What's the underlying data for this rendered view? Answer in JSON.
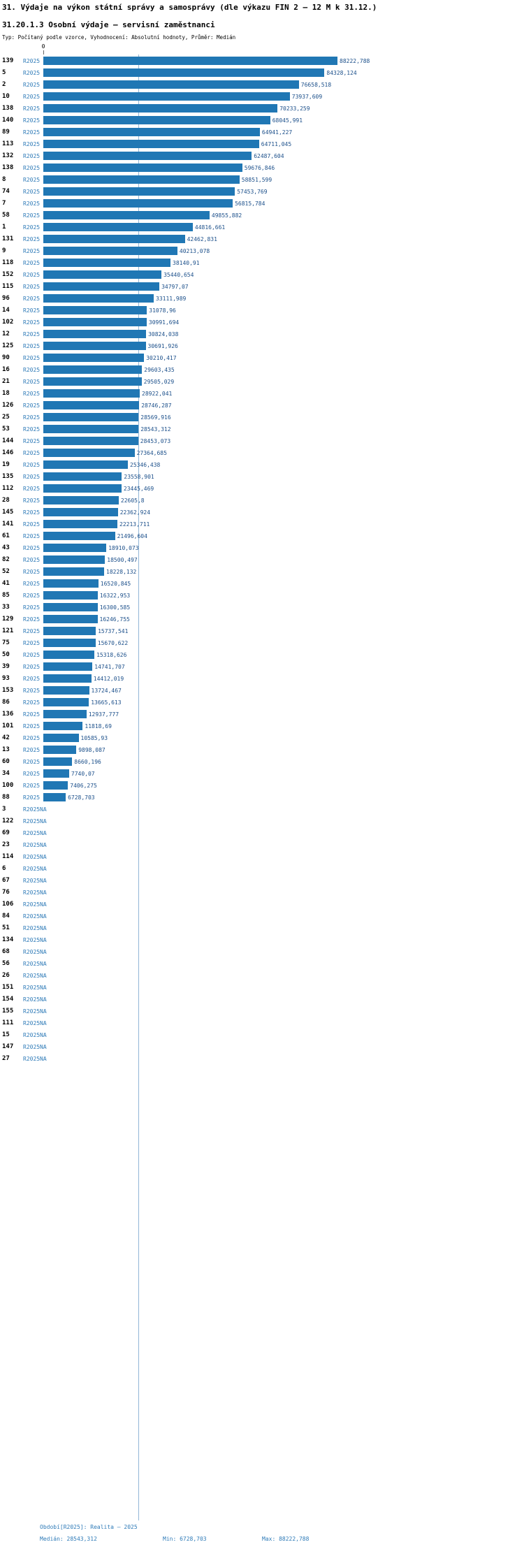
{
  "header": {
    "title": "31. Výdaje na výkon státní správy a samosprávy (dle výkazu FIN 2 – 12 M k 31.12.)",
    "subtitle": "31.20.1.3 Osobní výdaje – servisní zaměstnanci",
    "meta": "Typ: Počítaný podle vzorce, Vyhodnocení: Absolutní hodnoty, Průměr: Medián"
  },
  "colors": {
    "bar": "#2077b4",
    "series_label": "#2f7bb8",
    "value_label": "#1b4f8a",
    "median_line": "#92b7d7",
    "footer": "#2f7bb8",
    "text": "#000000"
  },
  "chart_data": {
    "type": "bar",
    "orientation": "horizontal",
    "title": "31.20.1.3 Osobní výdaje – servisní zaměstnanci",
    "series_name": "R2025",
    "na_label": "NA",
    "value_axis": {
      "zero_label": "0",
      "min": 0,
      "max": 88222.788
    },
    "median": 28543.312,
    "min": 6728.703,
    "max": 88222.788,
    "legend_position": "none",
    "grid": false,
    "rows": [
      {
        "id": "139",
        "value": 88222.788,
        "label": "88222,788"
      },
      {
        "id": "5",
        "value": 84328.124,
        "label": "84328,124"
      },
      {
        "id": "2",
        "value": 76658.518,
        "label": "76658,518"
      },
      {
        "id": "10",
        "value": 73937.609,
        "label": "73937,609"
      },
      {
        "id": "138",
        "value": 70233.259,
        "label": "70233,259"
      },
      {
        "id": "140",
        "value": 68045.991,
        "label": "68045,991"
      },
      {
        "id": "89",
        "value": 64941.227,
        "label": "64941,227"
      },
      {
        "id": "113",
        "value": 64711.045,
        "label": "64711,045"
      },
      {
        "id": "132",
        "value": 62487.604,
        "label": "62487,604"
      },
      {
        "id": "138",
        "value": 59676.846,
        "label": "59676,846"
      },
      {
        "id": "8",
        "value": 58851.599,
        "label": "58851,599"
      },
      {
        "id": "74",
        "value": 57453.769,
        "label": "57453,769"
      },
      {
        "id": "7",
        "value": 56815.784,
        "label": "56815,784"
      },
      {
        "id": "58",
        "value": 49855.882,
        "label": "49855,882"
      },
      {
        "id": "1",
        "value": 44816.661,
        "label": "44816,661"
      },
      {
        "id": "131",
        "value": 42462.831,
        "label": "42462,831"
      },
      {
        "id": "9",
        "value": 40213.078,
        "label": "40213,078"
      },
      {
        "id": "118",
        "value": 38140.91,
        "label": "38140,91"
      },
      {
        "id": "152",
        "value": 35440.654,
        "label": "35440,654"
      },
      {
        "id": "115",
        "value": 34797.07,
        "label": "34797,07"
      },
      {
        "id": "96",
        "value": 33111.989,
        "label": "33111,989"
      },
      {
        "id": "14",
        "value": 31078.96,
        "label": "31078,96"
      },
      {
        "id": "102",
        "value": 30991.694,
        "label": "30991,694"
      },
      {
        "id": "12",
        "value": 30824.038,
        "label": "30824,038"
      },
      {
        "id": "125",
        "value": 30691.926,
        "label": "30691,926"
      },
      {
        "id": "90",
        "value": 30210.417,
        "label": "30210,417"
      },
      {
        "id": "16",
        "value": 29603.435,
        "label": "29603,435"
      },
      {
        "id": "21",
        "value": 29505.029,
        "label": "29505,029"
      },
      {
        "id": "18",
        "value": 28922.041,
        "label": "28922,041"
      },
      {
        "id": "126",
        "value": 28746.287,
        "label": "28746,287"
      },
      {
        "id": "25",
        "value": 28569.916,
        "label": "28569,916"
      },
      {
        "id": "53",
        "value": 28543.312,
        "label": "28543,312"
      },
      {
        "id": "144",
        "value": 28453.073,
        "label": "28453,073"
      },
      {
        "id": "146",
        "value": 27364.685,
        "label": "27364,685"
      },
      {
        "id": "19",
        "value": 25346.438,
        "label": "25346,438"
      },
      {
        "id": "135",
        "value": 23558.901,
        "label": "23558,901"
      },
      {
        "id": "112",
        "value": 23445.469,
        "label": "23445,469"
      },
      {
        "id": "28",
        "value": 22605.8,
        "label": "22605,8"
      },
      {
        "id": "145",
        "value": 22362.924,
        "label": "22362,924"
      },
      {
        "id": "141",
        "value": 22213.711,
        "label": "22213,711"
      },
      {
        "id": "61",
        "value": 21496.604,
        "label": "21496,604"
      },
      {
        "id": "43",
        "value": 18910.073,
        "label": "18910,073"
      },
      {
        "id": "82",
        "value": 18500.497,
        "label": "18500,497"
      },
      {
        "id": "52",
        "value": 18228.132,
        "label": "18228,132"
      },
      {
        "id": "41",
        "value": 16520.845,
        "label": "16520,845"
      },
      {
        "id": "85",
        "value": 16322.953,
        "label": "16322,953"
      },
      {
        "id": "33",
        "value": 16300.585,
        "label": "16300,585"
      },
      {
        "id": "129",
        "value": 16246.755,
        "label": "16246,755"
      },
      {
        "id": "121",
        "value": 15737.541,
        "label": "15737,541"
      },
      {
        "id": "75",
        "value": 15670.622,
        "label": "15670,622"
      },
      {
        "id": "50",
        "value": 15318.626,
        "label": "15318,626"
      },
      {
        "id": "39",
        "value": 14741.707,
        "label": "14741,707"
      },
      {
        "id": "93",
        "value": 14412.019,
        "label": "14412,019"
      },
      {
        "id": "153",
        "value": 13724.467,
        "label": "13724,467"
      },
      {
        "id": "86",
        "value": 13665.613,
        "label": "13665,613"
      },
      {
        "id": "136",
        "value": 12937.777,
        "label": "12937,777"
      },
      {
        "id": "101",
        "value": 11818.69,
        "label": "11818,69"
      },
      {
        "id": "42",
        "value": 10585.93,
        "label": "10585,93"
      },
      {
        "id": "13",
        "value": 9898.087,
        "label": "9898,087"
      },
      {
        "id": "60",
        "value": 8660.196,
        "label": "8660,196"
      },
      {
        "id": "34",
        "value": 7740.07,
        "label": "7740,07"
      },
      {
        "id": "100",
        "value": 7406.275,
        "label": "7406,275"
      },
      {
        "id": "88",
        "value": 6728.703,
        "label": "6728,703"
      },
      {
        "id": "3",
        "value": null,
        "label": "NA"
      },
      {
        "id": "122",
        "value": null,
        "label": "NA"
      },
      {
        "id": "69",
        "value": null,
        "label": "NA"
      },
      {
        "id": "23",
        "value": null,
        "label": "NA"
      },
      {
        "id": "114",
        "value": null,
        "label": "NA"
      },
      {
        "id": "6",
        "value": null,
        "label": "NA"
      },
      {
        "id": "67",
        "value": null,
        "label": "NA"
      },
      {
        "id": "76",
        "value": null,
        "label": "NA"
      },
      {
        "id": "106",
        "value": null,
        "label": "NA"
      },
      {
        "id": "84",
        "value": null,
        "label": "NA"
      },
      {
        "id": "51",
        "value": null,
        "label": "NA"
      },
      {
        "id": "134",
        "value": null,
        "label": "NA"
      },
      {
        "id": "68",
        "value": null,
        "label": "NA"
      },
      {
        "id": "56",
        "value": null,
        "label": "NA"
      },
      {
        "id": "26",
        "value": null,
        "label": "NA"
      },
      {
        "id": "151",
        "value": null,
        "label": "NA"
      },
      {
        "id": "154",
        "value": null,
        "label": "NA"
      },
      {
        "id": "155",
        "value": null,
        "label": "NA"
      },
      {
        "id": "111",
        "value": null,
        "label": "NA"
      },
      {
        "id": "15",
        "value": null,
        "label": "NA"
      },
      {
        "id": "147",
        "value": null,
        "label": "NA"
      },
      {
        "id": "27",
        "value": null,
        "label": "NA"
      }
    ]
  },
  "footer": {
    "period": "Období[R2025]: Realita – 2025",
    "median": "Medián: 28543,312",
    "min": "Min: 6728,703",
    "max": "Max: 88222,788"
  }
}
